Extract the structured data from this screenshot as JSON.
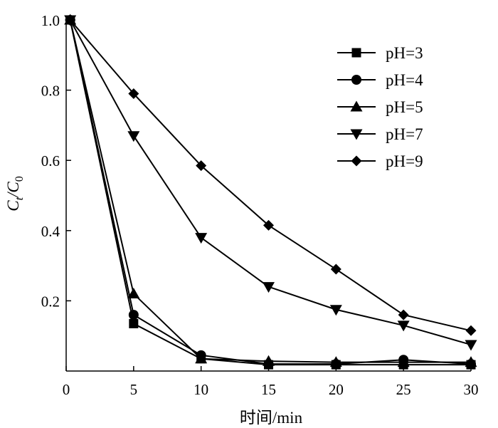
{
  "chart_data": {
    "type": "line",
    "xlabel": "时间/min",
    "ylabel_main": "C",
    "ylabel_main_sub": "t",
    "ylabel_sep": "/C",
    "ylabel_den_sub": "0",
    "xlim": [
      0,
      30
    ],
    "ylim": [
      0,
      1.0
    ],
    "xticks": [
      0,
      5,
      10,
      15,
      20,
      25,
      30
    ],
    "xtick_labels": [
      "0",
      "5",
      "10",
      "15",
      "20",
      "25",
      "30"
    ],
    "yticks": [
      0.2,
      0.4,
      0.6,
      0.8,
      1.0
    ],
    "ytick_labels": [
      "0.2",
      "0.4",
      "0.6",
      "0.8",
      "1.0"
    ],
    "grid": false,
    "legend_position": "top-right",
    "x": [
      0,
      5,
      10,
      15,
      20,
      25,
      30
    ],
    "series": [
      {
        "name": "pH=3",
        "marker": "square",
        "values": [
          1.0,
          0.135,
          0.035,
          0.018,
          0.018,
          0.018,
          0.018
        ]
      },
      {
        "name": "pH=4",
        "marker": "circle",
        "values": [
          1.0,
          0.16,
          0.045,
          0.02,
          0.02,
          0.032,
          0.02
        ]
      },
      {
        "name": "pH=5",
        "marker": "triangle-up",
        "values": [
          1.0,
          0.22,
          0.035,
          0.028,
          0.025,
          0.025,
          0.025
        ]
      },
      {
        "name": "pH=7",
        "marker": "triangle-down",
        "values": [
          1.0,
          0.67,
          0.38,
          0.24,
          0.175,
          0.13,
          0.075
        ]
      },
      {
        "name": "pH=9",
        "marker": "diamond",
        "values": [
          1.0,
          0.79,
          0.585,
          0.415,
          0.29,
          0.16,
          0.115
        ]
      }
    ]
  }
}
